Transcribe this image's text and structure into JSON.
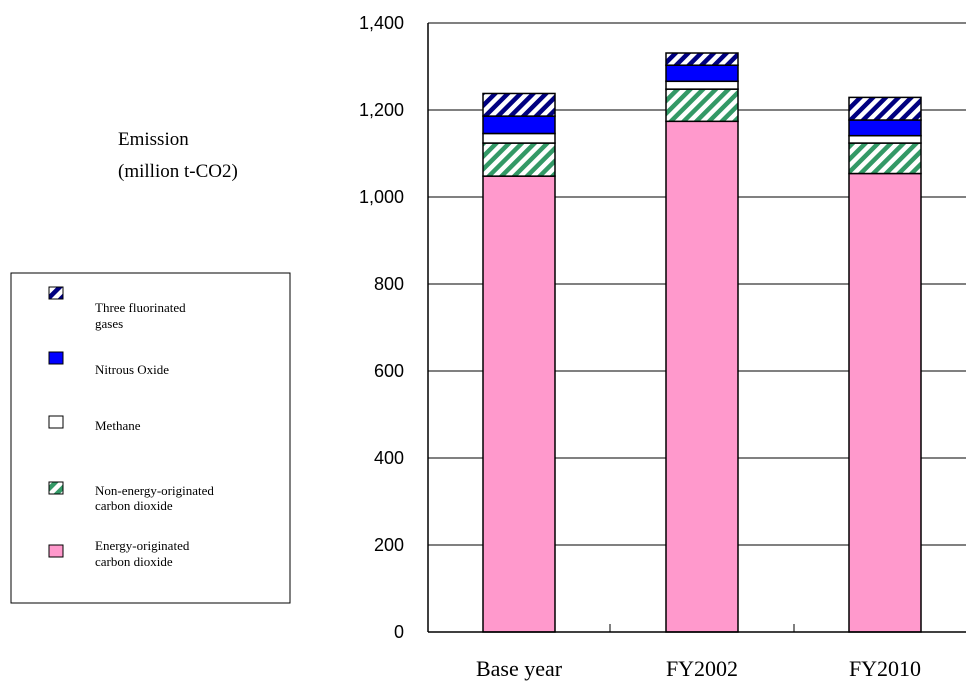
{
  "chart_data": {
    "type": "bar",
    "stacked": true,
    "ylabel": [
      "Emission",
      "(million t-CO2)"
    ],
    "ylim": [
      0,
      1400
    ],
    "yticks": [
      0,
      200,
      400,
      600,
      800,
      1000,
      1200,
      1400
    ],
    "ytick_labels": [
      "0",
      "200",
      "400",
      "600",
      "800",
      "1,000",
      "1,200",
      "1,400"
    ],
    "grid": "horizontal",
    "legend_position": "left",
    "categories": [
      "Base year",
      "FY2002",
      "FY2010"
    ],
    "series": [
      {
        "key": "energy",
        "name": [
          "Energy-originated",
          "carbon dioxide"
        ],
        "values": [
          1048,
          1174,
          1054
        ],
        "color": "#ff99cc",
        "pattern": "solid"
      },
      {
        "key": "nonenergy",
        "name": [
          "Non-energy-originated",
          "carbon dioxide"
        ],
        "values": [
          76,
          74,
          70
        ],
        "color": "#339966",
        "pattern": "diagonal"
      },
      {
        "key": "methane",
        "name": [
          "Methane"
        ],
        "values": [
          22,
          18,
          17
        ],
        "color": "#ffffff",
        "pattern": "solid"
      },
      {
        "key": "n2o",
        "name": [
          "Nitrous Oxide"
        ],
        "values": [
          40,
          37,
          36
        ],
        "color": "#0000ff",
        "pattern": "solid"
      },
      {
        "key": "fgas",
        "name": [
          "Three fluorinated",
          "gases"
        ],
        "values": [
          52,
          28,
          52
        ],
        "color": "#000080",
        "pattern": "diagonal"
      }
    ]
  }
}
